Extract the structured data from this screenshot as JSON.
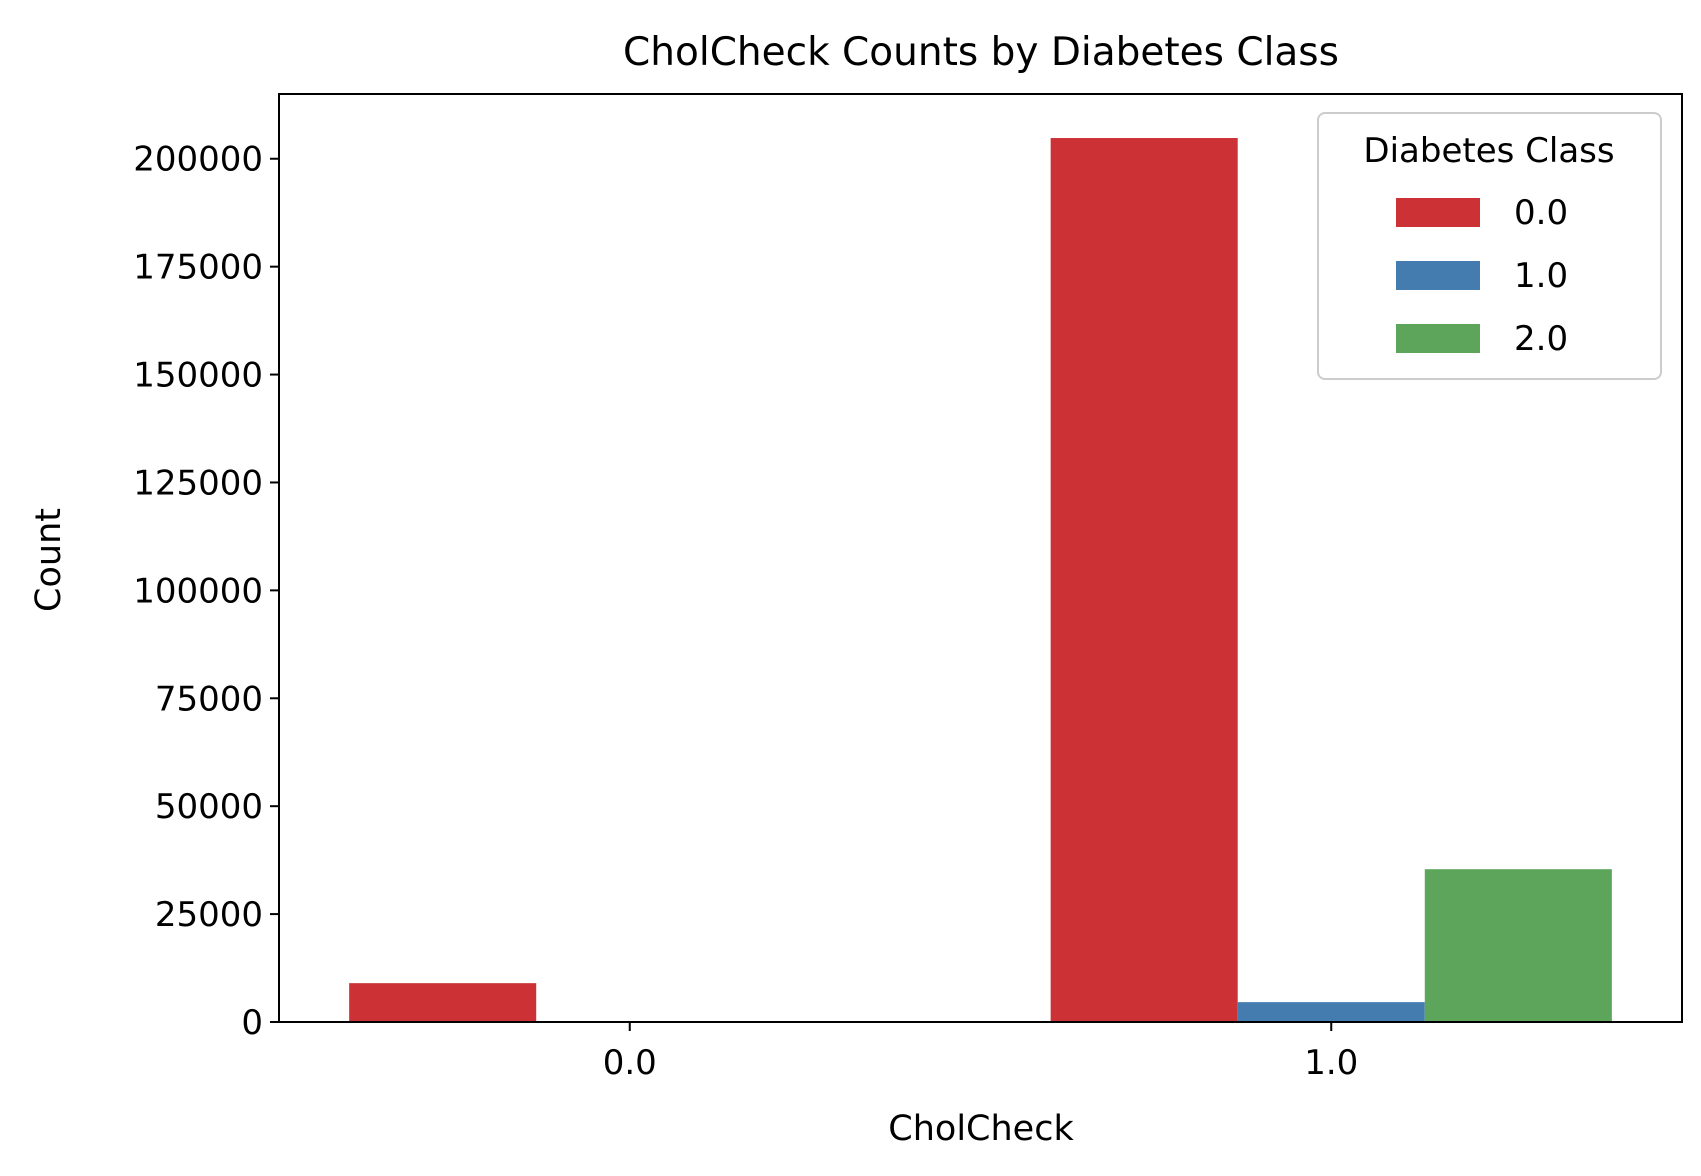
{
  "chart_data": {
    "type": "bar",
    "title": "CholCheck Counts by Diabetes Class",
    "xlabel": "CholCheck",
    "ylabel": "Count",
    "categories": [
      "0.0",
      "1.0"
    ],
    "ylim": [
      0,
      215000
    ],
    "yticks": [
      0,
      25000,
      50000,
      75000,
      100000,
      125000,
      150000,
      175000,
      200000
    ],
    "ytick_labels": [
      "0",
      "25000",
      "50000",
      "75000",
      "100000",
      "125000",
      "150000",
      "175000",
      "200000"
    ],
    "grid": false,
    "legend": {
      "title": "Diabetes Class",
      "placement": "top-right"
    },
    "series": [
      {
        "name": "0.0",
        "color": "#cc3235",
        "values": [
          9000,
          204800
        ]
      },
      {
        "name": "1.0",
        "color": "#447cb0",
        "values": [
          0,
          4600
        ]
      },
      {
        "name": "2.0",
        "color": "#5ca55a",
        "values": [
          0,
          35400
        ]
      }
    ]
  }
}
